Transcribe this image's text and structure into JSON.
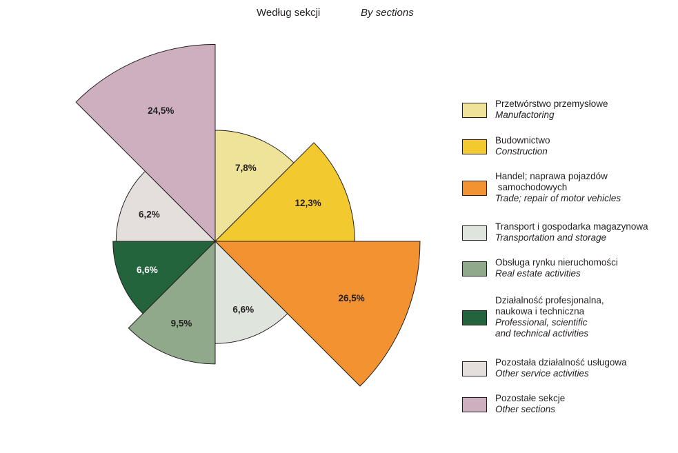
{
  "title": {
    "pl": "Według sekcji",
    "en": "By sections"
  },
  "chart_data": {
    "type": "pie",
    "variant": "polar-area",
    "title": "Według sekcji    By sections",
    "categories": [
      "Przetwórstwo przemysłowe / Manufactoring",
      "Budownictwo / Construction",
      "Handel; naprawa pojazdów samochodowych / Trade; repair of motor vehicles",
      "Transport i gospodarka magazynowa / Transportation and storage",
      "Obsługa rynku nieruchomości / Real estate activities",
      "Działalność profesjonalna, naukowa i techniczna / Professional, scientific and technical activities",
      "Pozostała działalność usługowa / Other service activities",
      "Pozostałe sekcje / Other sections"
    ],
    "values": [
      7.8,
      12.3,
      26.5,
      6.6,
      9.5,
      6.6,
      6.2,
      24.5
    ],
    "data_labels": [
      "7,8%",
      "12,3%",
      "26,5%",
      "6,6%",
      "9,5%",
      "6,6%",
      "6,2%",
      "24,5%"
    ],
    "colors": [
      "#efe39a",
      "#f2ca30",
      "#f39231",
      "#dfe4dc",
      "#8fa98a",
      "#23643c",
      "#e4dedd",
      "#cdafc0"
    ],
    "label_colors": [
      "#231f20",
      "#231f20",
      "#231f20",
      "#231f20",
      "#231f20",
      "#ffffff",
      "#231f20",
      "#231f20"
    ],
    "legend_position": "right"
  },
  "legend": [
    {
      "pl": "Przetwórstwo przemysłowe",
      "en": "Manufactoring"
    },
    {
      "pl": "Budownictwo",
      "en": "Construction"
    },
    {
      "pl": "Handel; naprawa pojazdów\n samochodowych",
      "en": "Trade; repair of motor vehicles"
    },
    {
      "pl": "Transport i gospodarka magazynowa",
      "en": "Transportation and storage"
    },
    {
      "pl": "Obsługa rynku nieruchomości",
      "en": "Real estate activities"
    },
    {
      "pl": "Działalność profesjonalna,\nnaukowa i techniczna",
      "en": "Professional, scientific\nand technical activities"
    },
    {
      "pl": "Pozostała działalność usługowa",
      "en": "Other service activities"
    },
    {
      "pl": "Pozostałe sekcje",
      "en": "Other sections"
    }
  ]
}
